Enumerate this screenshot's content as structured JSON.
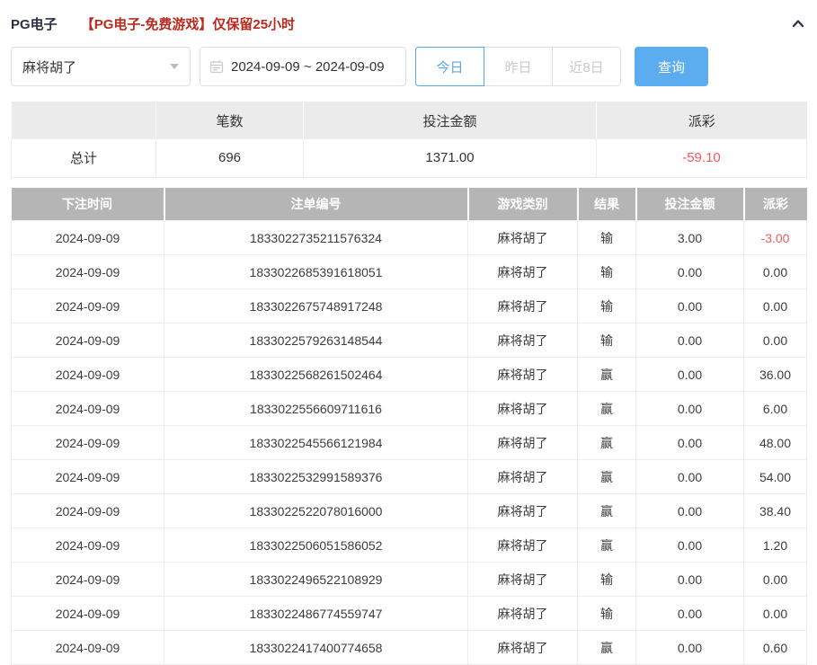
{
  "header": {
    "title": "PG电子",
    "notice": "【PG电子-免费游戏】仅保留25小时"
  },
  "filters": {
    "game_select": {
      "value": "麻将胡了"
    },
    "date_range": {
      "value": "2024-09-09 ~ 2024-09-09"
    },
    "quick_buttons": [
      {
        "label": "今日",
        "active": true
      },
      {
        "label": "昨日",
        "active": false
      },
      {
        "label": "近8日",
        "active": false
      }
    ],
    "search_label": "查询"
  },
  "summary": {
    "headers": [
      "",
      "笔数",
      "投注金额",
      "派彩"
    ],
    "row_label": "总计",
    "count": "696",
    "bet_amount": "1371.00",
    "payout": "-59.10"
  },
  "table": {
    "headers": [
      "下注时间",
      "注单编号",
      "游戏类别",
      "结果",
      "投注金额",
      "派彩"
    ],
    "rows": [
      [
        "2024-09-09",
        "1833022735211576324",
        "麻将胡了",
        "输",
        "3.00",
        "-3.00"
      ],
      [
        "2024-09-09",
        "1833022685391618051",
        "麻将胡了",
        "输",
        "0.00",
        "0.00"
      ],
      [
        "2024-09-09",
        "1833022675748917248",
        "麻将胡了",
        "输",
        "0.00",
        "0.00"
      ],
      [
        "2024-09-09",
        "1833022579263148544",
        "麻将胡了",
        "输",
        "0.00",
        "0.00"
      ],
      [
        "2024-09-09",
        "1833022568261502464",
        "麻将胡了",
        "赢",
        "0.00",
        "36.00"
      ],
      [
        "2024-09-09",
        "1833022556609711616",
        "麻将胡了",
        "赢",
        "0.00",
        "6.00"
      ],
      [
        "2024-09-09",
        "1833022545566121984",
        "麻将胡了",
        "赢",
        "0.00",
        "48.00"
      ],
      [
        "2024-09-09",
        "1833022532991589376",
        "麻将胡了",
        "赢",
        "0.00",
        "54.00"
      ],
      [
        "2024-09-09",
        "1833022522078016000",
        "麻将胡了",
        "赢",
        "0.00",
        "38.40"
      ],
      [
        "2024-09-09",
        "1833022506051586052",
        "麻将胡了",
        "赢",
        "0.00",
        "1.20"
      ],
      [
        "2024-09-09",
        "1833022496522108929",
        "麻将胡了",
        "输",
        "0.00",
        "0.00"
      ],
      [
        "2024-09-09",
        "1833022486774559747",
        "麻将胡了",
        "输",
        "0.00",
        "0.00"
      ],
      [
        "2024-09-09",
        "1833022417400774658",
        "麻将胡了",
        "赢",
        "0.00",
        "0.60"
      ]
    ]
  },
  "colors": {
    "accent_blue": "#5badf0",
    "active_tab_blue": "#58a7eb",
    "negative_red": "#f15b5b",
    "notice_red": "#bc2a1d",
    "table_header_gray": "#b5b5b5",
    "summary_header_gray": "#ebebeb",
    "title_dark": "#2a3242"
  }
}
